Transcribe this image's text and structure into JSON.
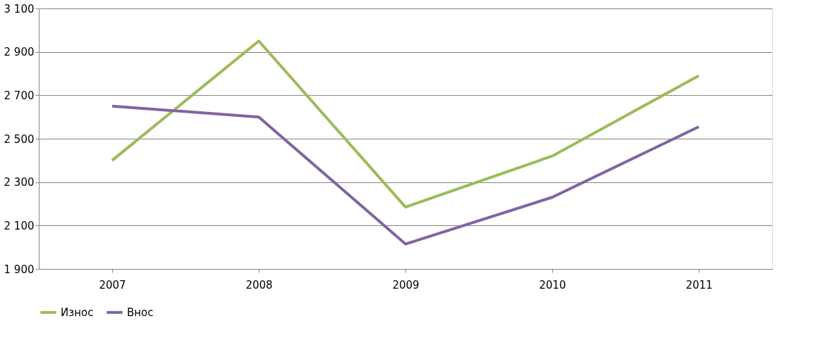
{
  "chart_data": {
    "type": "line",
    "categories": [
      "2007",
      "2008",
      "2009",
      "2010",
      "2011"
    ],
    "series": [
      {
        "name": "Износ",
        "color": "#9bbb59",
        "values": [
          2400,
          2950,
          2185,
          2420,
          2790
        ]
      },
      {
        "name": "Внос",
        "color": "#8064a2",
        "values": [
          2650,
          2600,
          2015,
          2230,
          2555
        ]
      }
    ],
    "ylim": [
      1900,
      3100
    ],
    "yticks": [
      {
        "value": 1900,
        "label": "1 900"
      },
      {
        "value": 2100,
        "label": "2 100"
      },
      {
        "value": 2300,
        "label": "2 300"
      },
      {
        "value": 2500,
        "label": "2 500"
      },
      {
        "value": 2700,
        "label": "2 700"
      },
      {
        "value": 2900,
        "label": "2 900"
      },
      {
        "value": 3100,
        "label": "3 100"
      }
    ],
    "grid": "y",
    "legend": "bottom",
    "marker": "none",
    "line_style": "solid"
  }
}
